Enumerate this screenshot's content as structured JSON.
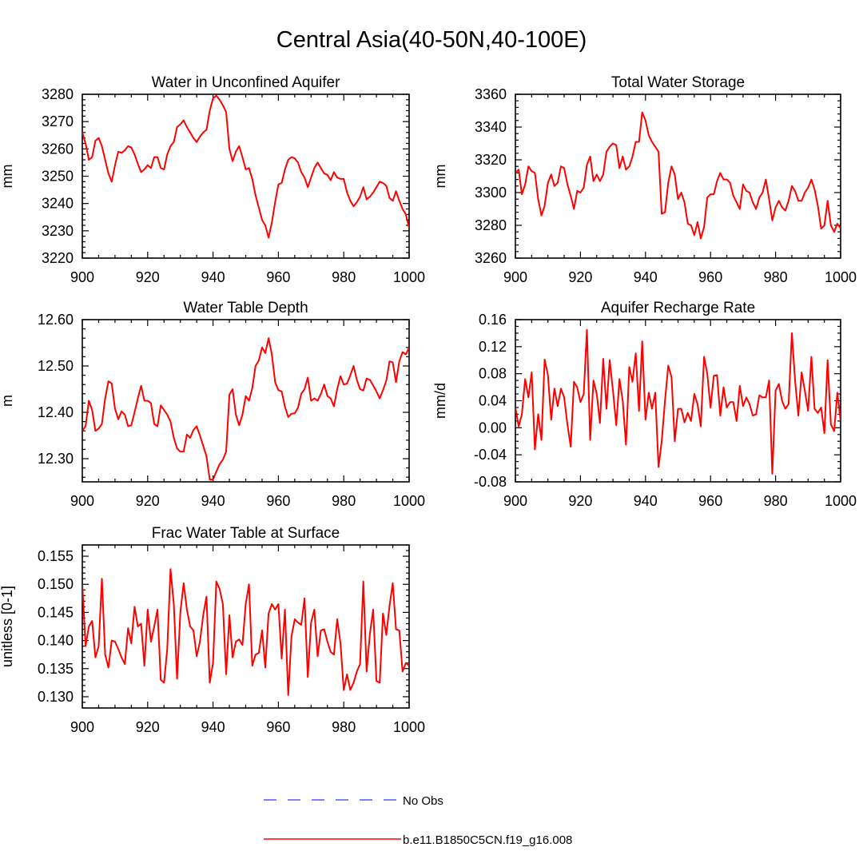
{
  "title": "Central Asia(40-50N,40-100E)",
  "legend": [
    {
      "label": "No Obs",
      "style": "dashed",
      "color": "#3333ff"
    },
    {
      "label": "b.e11.B1850C5CN.f19_g16.008",
      "style": "solid",
      "color": "#ff0000"
    }
  ],
  "chart_data": [
    {
      "type": "line",
      "title": "Water in Unconfined Aquifer",
      "xlabel": "",
      "ylabel": "mm",
      "xlim": [
        900,
        1000
      ],
      "ylim": [
        3220,
        3280
      ],
      "xticks": [
        900,
        920,
        940,
        960,
        980,
        1000
      ],
      "yticks": [
        "3220",
        "3230",
        "3240",
        "3250",
        "3260",
        "3270",
        "3280"
      ],
      "yminor": 5,
      "line_color": "#ff0000",
      "x": [
        900,
        901,
        902,
        903,
        904,
        905,
        906,
        907,
        908,
        909,
        910,
        911,
        912,
        913,
        914,
        915,
        916,
        917,
        918,
        919,
        920,
        921,
        922,
        923,
        924,
        925,
        926,
        927,
        928,
        929,
        930,
        931,
        932,
        933,
        934,
        935,
        936,
        937,
        938,
        939,
        940,
        941,
        942,
        943,
        944,
        945,
        946,
        947,
        948,
        949,
        950,
        951,
        952,
        953,
        954,
        955,
        956,
        957,
        958,
        959,
        960,
        961,
        962,
        963,
        964,
        965,
        966,
        967,
        968,
        969,
        970,
        971,
        972,
        973,
        974,
        975,
        976,
        977,
        978,
        979,
        980,
        981,
        982,
        983,
        984,
        985,
        986,
        987,
        988,
        989,
        990,
        991,
        992,
        993,
        994,
        995,
        996,
        997,
        998,
        999,
        1000
      ],
      "values": [
        3266,
        3262,
        3256,
        3257,
        3263,
        3264,
        3261,
        3256,
        3251,
        3248,
        3254,
        3259,
        3258.5,
        3259.5,
        3261,
        3260.5,
        3258,
        3254.5,
        3251.5,
        3252.5,
        3254,
        3253,
        3257,
        3257,
        3253,
        3252.5,
        3258,
        3261,
        3262.5,
        3268,
        3269,
        3270.5,
        3268,
        3266,
        3264,
        3262.5,
        3264.5,
        3266,
        3267,
        3274,
        3278.5,
        3279.5,
        3278,
        3276,
        3273.5,
        3260,
        3255.5,
        3259,
        3261,
        3257,
        3252.5,
        3253,
        3249,
        3243,
        3238.5,
        3234,
        3232,
        3227.5,
        3233,
        3240.5,
        3247,
        3247.5,
        3252.5,
        3256,
        3257,
        3256.5,
        3255,
        3251.5,
        3249.5,
        3246,
        3249.5,
        3253,
        3255,
        3253,
        3251,
        3250.5,
        3248.5,
        3251.5,
        3249.5,
        3249,
        3249,
        3244,
        3241,
        3239,
        3240.5,
        3242.5,
        3246,
        3241.5,
        3242.5,
        3244,
        3246,
        3248,
        3247.5,
        3246.5,
        3242,
        3241,
        3244.5,
        3241,
        3238,
        3236,
        3231
      ]
    },
    {
      "type": "line",
      "title": "Total Water Storage",
      "xlabel": "",
      "ylabel": "mm",
      "xlim": [
        900,
        1000
      ],
      "ylim": [
        3260,
        3360
      ],
      "xticks": [
        900,
        920,
        940,
        960,
        980,
        1000
      ],
      "yticks": [
        "3260",
        "3280",
        "3300",
        "3320",
        "3340",
        "3360"
      ],
      "yminor": 5,
      "line_color": "#ff0000",
      "x": [
        900,
        901,
        902,
        903,
        904,
        905,
        906,
        907,
        908,
        909,
        910,
        911,
        912,
        913,
        914,
        915,
        916,
        917,
        918,
        919,
        920,
        921,
        922,
        923,
        924,
        925,
        926,
        927,
        928,
        929,
        930,
        931,
        932,
        933,
        934,
        935,
        936,
        937,
        938,
        939,
        940,
        941,
        942,
        943,
        944,
        945,
        946,
        947,
        948,
        949,
        950,
        951,
        952,
        953,
        954,
        955,
        956,
        957,
        958,
        959,
        960,
        961,
        962,
        963,
        964,
        965,
        966,
        967,
        968,
        969,
        970,
        971,
        972,
        973,
        974,
        975,
        976,
        977,
        978,
        979,
        980,
        981,
        982,
        983,
        984,
        985,
        986,
        987,
        988,
        989,
        990,
        991,
        992,
        993,
        994,
        995,
        996,
        997,
        998,
        999,
        1000
      ],
      "values": [
        3312,
        3314,
        3299,
        3305,
        3316,
        3313,
        3312,
        3296,
        3286,
        3292,
        3306,
        3311,
        3304,
        3306,
        3316,
        3315,
        3305,
        3298,
        3290,
        3301,
        3300,
        3303,
        3317,
        3322,
        3307,
        3311,
        3307,
        3311,
        3325,
        3328,
        3330,
        3329,
        3315,
        3322,
        3314,
        3316,
        3322,
        3331,
        3331,
        3349,
        3344,
        3335,
        3331,
        3328,
        3325,
        3287,
        3288,
        3306,
        3316,
        3311,
        3296,
        3300,
        3294,
        3281,
        3280,
        3274,
        3282,
        3272,
        3279,
        3297,
        3299,
        3299,
        3307,
        3312,
        3308,
        3308,
        3306,
        3298,
        3294,
        3290,
        3305,
        3301,
        3300,
        3294,
        3290,
        3297,
        3300,
        3308,
        3296,
        3283,
        3291,
        3295,
        3291,
        3289,
        3295,
        3304,
        3301,
        3295,
        3295,
        3300,
        3303,
        3308,
        3302,
        3292,
        3278,
        3280,
        3295,
        3280,
        3276,
        3281,
        3278
      ]
    },
    {
      "type": "line",
      "title": "Water Table Depth",
      "xlabel": "",
      "ylabel": "m",
      "xlim": [
        900,
        1000
      ],
      "ylim": [
        12.25,
        12.6
      ],
      "xticks": [
        900,
        920,
        940,
        960,
        980,
        1000
      ],
      "yticks": [
        "12.30",
        "12.40",
        "12.50",
        "12.60"
      ],
      "yminor": 5,
      "line_color": "#ff0000",
      "x": [
        900,
        901,
        902,
        903,
        904,
        905,
        906,
        907,
        908,
        909,
        910,
        911,
        912,
        913,
        914,
        915,
        916,
        917,
        918,
        919,
        920,
        921,
        922,
        923,
        924,
        925,
        926,
        927,
        928,
        929,
        930,
        931,
        932,
        933,
        934,
        935,
        936,
        937,
        938,
        939,
        940,
        941,
        942,
        943,
        944,
        945,
        946,
        947,
        948,
        949,
        950,
        951,
        952,
        953,
        954,
        955,
        956,
        957,
        958,
        959,
        960,
        961,
        962,
        963,
        964,
        965,
        966,
        967,
        968,
        969,
        970,
        971,
        972,
        973,
        974,
        975,
        976,
        977,
        978,
        979,
        980,
        981,
        982,
        983,
        984,
        985,
        986,
        987,
        988,
        989,
        990,
        991,
        992,
        993,
        994,
        995,
        996,
        997,
        998,
        999,
        1000
      ],
      "values": [
        12.36,
        12.37,
        12.425,
        12.405,
        12.36,
        12.365,
        12.375,
        12.43,
        12.467,
        12.462,
        12.408,
        12.385,
        12.402,
        12.395,
        12.37,
        12.372,
        12.4,
        12.43,
        12.457,
        12.425,
        12.425,
        12.42,
        12.375,
        12.37,
        12.415,
        12.405,
        12.395,
        12.38,
        12.345,
        12.322,
        12.315,
        12.315,
        12.352,
        12.345,
        12.362,
        12.37,
        12.35,
        12.328,
        12.305,
        12.255,
        12.255,
        12.272,
        12.288,
        12.298,
        12.315,
        12.438,
        12.45,
        12.395,
        12.372,
        12.395,
        12.435,
        12.425,
        12.452,
        12.5,
        12.512,
        12.54,
        12.528,
        12.56,
        12.525,
        12.465,
        12.448,
        12.445,
        12.412,
        12.39,
        12.397,
        12.398,
        12.41,
        12.44,
        12.45,
        12.475,
        12.425,
        12.43,
        12.425,
        12.44,
        12.46,
        12.435,
        12.43,
        12.413,
        12.45,
        12.478,
        12.46,
        12.462,
        12.48,
        12.5,
        12.47,
        12.45,
        12.447,
        12.473,
        12.47,
        12.458,
        12.445,
        12.43,
        12.448,
        12.468,
        12.51,
        12.508,
        12.465,
        12.51,
        12.53,
        12.525,
        12.54
      ]
    },
    {
      "type": "line",
      "title": "Aquifer Recharge Rate",
      "xlabel": "",
      "ylabel": "mm/d",
      "xlim": [
        900,
        1000
      ],
      "ylim": [
        -0.08,
        0.16
      ],
      "xticks": [
        900,
        920,
        940,
        960,
        980,
        1000
      ],
      "yticks": [
        "-0.08",
        "-0.04",
        "0.00",
        "0.04",
        "0.08",
        "0.12",
        "0.16"
      ],
      "yminor": 4,
      "line_color": "#ff0000",
      "x": [
        900,
        901,
        902,
        903,
        904,
        905,
        906,
        907,
        908,
        909,
        910,
        911,
        912,
        913,
        914,
        915,
        916,
        917,
        918,
        919,
        920,
        921,
        922,
        923,
        924,
        925,
        926,
        927,
        928,
        929,
        930,
        931,
        932,
        933,
        934,
        935,
        936,
        937,
        938,
        939,
        940,
        941,
        942,
        943,
        944,
        945,
        946,
        947,
        948,
        949,
        950,
        951,
        952,
        953,
        954,
        955,
        956,
        957,
        958,
        959,
        960,
        961,
        962,
        963,
        964,
        965,
        966,
        967,
        968,
        969,
        970,
        971,
        972,
        973,
        974,
        975,
        976,
        977,
        978,
        979,
        980,
        981,
        982,
        983,
        984,
        985,
        986,
        987,
        988,
        989,
        990,
        991,
        992,
        993,
        994,
        995,
        996,
        997,
        998,
        999,
        1000
      ],
      "values": [
        0.03,
        0.002,
        0.02,
        0.072,
        0.045,
        0.082,
        -0.032,
        0.02,
        -0.018,
        0.101,
        0.078,
        0.012,
        0.058,
        0.032,
        0.058,
        0.045,
        0.005,
        -0.028,
        0.068,
        0.06,
        0.038,
        0.05,
        0.145,
        -0.018,
        0.07,
        0.05,
        0.007,
        0.102,
        0.028,
        0.1,
        0.055,
        0.004,
        0.072,
        0.04,
        -0.025,
        0.09,
        0.068,
        0.11,
        0.025,
        0.128,
        0.012,
        0.052,
        0.028,
        0.052,
        -0.058,
        -0.02,
        0.04,
        0.092,
        0.075,
        -0.02,
        0.028,
        0.028,
        0.008,
        0.022,
        0.01,
        0.05,
        0.035,
        0.002,
        0.105,
        0.08,
        0.03,
        0.077,
        0.078,
        0.018,
        0.06,
        0.03,
        0.038,
        0.038,
        0.01,
        0.062,
        0.032,
        0.045,
        0.035,
        0.018,
        0.02,
        0.048,
        0.045,
        0.045,
        0.07,
        -0.068,
        0.055,
        0.065,
        0.04,
        0.028,
        0.035,
        0.14,
        0.07,
        0.018,
        0.082,
        0.055,
        0.025,
        0.105,
        0.028,
        0.022,
        0.03,
        -0.008,
        0.1,
        0.005,
        -0.005,
        0.052,
        0.01
      ]
    },
    {
      "type": "line",
      "title": "Frac Water Table at Surface",
      "xlabel": "",
      "ylabel": "unitless [0-1]",
      "xlim": [
        900,
        1000
      ],
      "ylim": [
        0.128,
        0.157
      ],
      "xticks": [
        900,
        920,
        940,
        960,
        980,
        1000
      ],
      "yticks": [
        "0.130",
        "0.135",
        "0.140",
        "0.145",
        "0.150",
        "0.155"
      ],
      "yminor": 5,
      "line_color": "#ff0000",
      "x": [
        900,
        901,
        902,
        903,
        904,
        905,
        906,
        907,
        908,
        909,
        910,
        911,
        912,
        913,
        914,
        915,
        916,
        917,
        918,
        919,
        920,
        921,
        922,
        923,
        924,
        925,
        926,
        927,
        928,
        929,
        930,
        931,
        932,
        933,
        934,
        935,
        936,
        937,
        938,
        939,
        940,
        941,
        942,
        943,
        944,
        945,
        946,
        947,
        948,
        949,
        950,
        951,
        952,
        953,
        954,
        955,
        956,
        957,
        958,
        959,
        960,
        961,
        962,
        963,
        964,
        965,
        966,
        967,
        968,
        969,
        970,
        971,
        972,
        973,
        974,
        975,
        976,
        977,
        978,
        979,
        980,
        981,
        982,
        983,
        984,
        985,
        986,
        987,
        988,
        989,
        990,
        991,
        992,
        993,
        994,
        995,
        996,
        997,
        998,
        999,
        1000
      ],
      "values": [
        0.15,
        0.139,
        0.1425,
        0.1435,
        0.137,
        0.139,
        0.151,
        0.1375,
        0.1352,
        0.14,
        0.1398,
        0.1385,
        0.137,
        0.1358,
        0.1422,
        0.1395,
        0.146,
        0.1425,
        0.143,
        0.1355,
        0.1455,
        0.1398,
        0.1425,
        0.1455,
        0.133,
        0.1325,
        0.1385,
        0.1527,
        0.1465,
        0.1332,
        0.145,
        0.1502,
        0.1455,
        0.1425,
        0.1418,
        0.1372,
        0.1398,
        0.1445,
        0.1478,
        0.1325,
        0.136,
        0.1505,
        0.1492,
        0.1465,
        0.134,
        0.1445,
        0.137,
        0.1398,
        0.1402,
        0.1392,
        0.1465,
        0.15,
        0.1355,
        0.1375,
        0.1378,
        0.1418,
        0.1352,
        0.1448,
        0.1465,
        0.1455,
        0.1465,
        0.1368,
        0.1455,
        0.1303,
        0.1408,
        0.1438,
        0.1432,
        0.1428,
        0.1475,
        0.1335,
        0.1432,
        0.1455,
        0.1372,
        0.1418,
        0.142,
        0.1398,
        0.138,
        0.1375,
        0.1438,
        0.1395,
        0.1312,
        0.134,
        0.1312,
        0.1325,
        0.1345,
        0.1358,
        0.1505,
        0.1345,
        0.1412,
        0.1455,
        0.1328,
        0.1325,
        0.1448,
        0.141,
        0.1462,
        0.1502,
        0.142,
        0.1418,
        0.1345,
        0.136,
        0.1355
      ]
    }
  ]
}
